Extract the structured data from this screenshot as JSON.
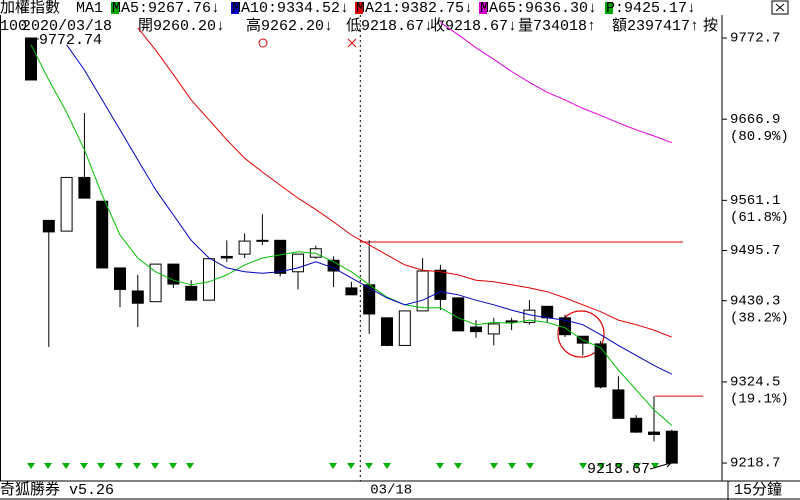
{
  "header": {
    "title": "加權指數",
    "period": "MA1",
    "indicators": [
      {
        "text": "MA5:9267.76↓",
        "color": "#00a800"
      },
      {
        "text": "MA10:9334.52↓",
        "color": "#0000c0"
      },
      {
        "text": "MA21:9382.75↓",
        "color": "#e00000"
      },
      {
        "text": "MA65:9636.30↓",
        "color": "#d000d0"
      },
      {
        "text": "P:9425.17↓",
        "color": "#00a800"
      }
    ],
    "info": [
      "100",
      "2020/03/18",
      "開9260.20↓",
      "高9262.20↓",
      "低9218.67↓",
      "收9218.67↓",
      "量734018↑",
      "額2397417↑",
      "按"
    ]
  },
  "footer": {
    "app": "奇狐勝券 v5.26",
    "interval": "15分鐘"
  },
  "chart_data": {
    "type": "candlestick",
    "categories": [
      null,
      null,
      null,
      null,
      null,
      null,
      null,
      null,
      null,
      null,
      null,
      null,
      null,
      null,
      null,
      null,
      null,
      null,
      null,
      "03/18",
      null,
      null,
      null,
      null,
      null,
      null,
      null,
      null,
      null,
      null,
      null,
      null,
      null,
      null,
      null,
      null,
      null
    ],
    "open": [
      9772.74,
      9535,
      9521,
      9591,
      9560,
      9473,
      9443,
      9429,
      9478,
      9449,
      9431,
      9488,
      9491,
      9509,
      9509,
      9468,
      9487,
      9483,
      9447,
      9451,
      9408,
      9372,
      9417,
      9470,
      9434,
      9396,
      9387,
      9404,
      9402,
      9423,
      9408,
      9384,
      9374,
      9314,
      9277,
      9259,
      9260.2
    ],
    "high": [
      9772.74,
      9535,
      9591,
      9675,
      9560,
      9473,
      9464,
      9478,
      9478,
      9457,
      9485,
      9509,
      9518,
      9543,
      9509,
      9491,
      9502,
      9488,
      9455,
      9509,
      9408,
      9417,
      9486,
      9477,
      9434,
      9405,
      9408,
      9408,
      9431,
      9423,
      9412,
      9384,
      9378,
      9332,
      9281,
      9306,
      9262.2
    ],
    "low": [
      9718,
      9370,
      9521,
      9564,
      9473,
      9422,
      9396,
      9429,
      9447,
      9431,
      9431,
      9481,
      9486,
      9503,
      9462,
      9445,
      9485,
      9448,
      9438,
      9387,
      9371,
      9372,
      9417,
      9418,
      9391,
      9382,
      9372,
      9392,
      9399,
      9402,
      9383,
      9359,
      9316,
      9277,
      9258,
      9247,
      9218.67
    ],
    "close": [
      9718,
      9520,
      9591,
      9564,
      9473,
      9445,
      9427,
      9478,
      9452,
      9431,
      9485,
      9486,
      9508,
      9508,
      9466,
      9491,
      9498,
      9469,
      9438,
      9413,
      9372,
      9417,
      9469,
      9432,
      9391,
      9390,
      9400,
      9404,
      9418,
      9408,
      9386,
      9375,
      9318,
      9277,
      9259,
      9256,
      9218.67
    ],
    "series": [
      {
        "name": "MA5",
        "color": "#00c000",
        "values": [
          9764,
          9718,
          9676,
          9627,
          9568,
          9516,
          9486,
          9468,
          9457,
          9451,
          9455,
          9464,
          9477,
          9486,
          9490,
          9494,
          9492,
          9481,
          9468,
          9451,
          9435,
          9425,
          9421,
          9421,
          9408,
          9399,
          9402,
          9401,
          9405,
          9402,
          9395,
          9379,
          9369,
          9340,
          9314,
          9288,
          9267.76
        ]
      },
      {
        "name": "MA10",
        "color": "#0000c0",
        "values": [
          null,
          null,
          9764,
          9731,
          9692,
          9653,
          9614,
          9575,
          9542,
          9509,
          9486,
          9473,
          9468,
          9466,
          9468,
          9473,
          9481,
          9473,
          9460,
          9447,
          9434,
          9425,
          9431,
          9442,
          9438,
          9431,
          9425,
          9418,
          9412,
          9408,
          9405,
          9399,
          9386,
          9372,
          9359,
          9346,
          9334.52
        ]
      },
      {
        "name": "MA21",
        "color": "#e00000",
        "values": [
          null,
          null,
          null,
          null,
          null,
          null,
          9786,
          9757,
          9725,
          9692,
          9666,
          9640,
          9616,
          9598,
          9581,
          9564,
          9549,
          9533,
          9516,
          9503,
          9490,
          9477,
          9470,
          9468,
          9464,
          9457,
          9455,
          9451,
          9447,
          9442,
          9434,
          9425,
          9416,
          9405,
          9399,
          9392,
          9382.75
        ]
      },
      {
        "name": "MA65",
        "color": "#e000e0",
        "values": [
          null,
          null,
          null,
          null,
          null,
          null,
          null,
          null,
          null,
          null,
          null,
          null,
          null,
          null,
          null,
          null,
          null,
          null,
          null,
          null,
          null,
          null,
          null,
          9793,
          9777,
          9760,
          9745,
          9729,
          9715,
          9702,
          9692,
          9681,
          9672,
          9662,
          9653,
          9645,
          9636.3
        ]
      }
    ],
    "levels": [
      9506.8,
      9306
    ],
    "level_color": "#e00000",
    "ylim": [
      9196.6,
      9802.7
    ],
    "yticks": [
      9218.7,
      9324.5,
      9430.3,
      9495.7,
      9561.1,
      9666.9,
      9772.7
    ],
    "ytick_notes": [
      {
        "value": 9324.5,
        "label": "(19.1%)"
      },
      {
        "value": 9430.3,
        "label": "(38.2%)"
      },
      {
        "value": 9561.1,
        "label": "(61.8%)"
      },
      {
        "value": 9666.9,
        "label": "(80.9%)"
      }
    ],
    "annotations": [
      "9772.74",
      "9218.67"
    ],
    "up_color": "#ffffff",
    "down_color": "#000000"
  }
}
